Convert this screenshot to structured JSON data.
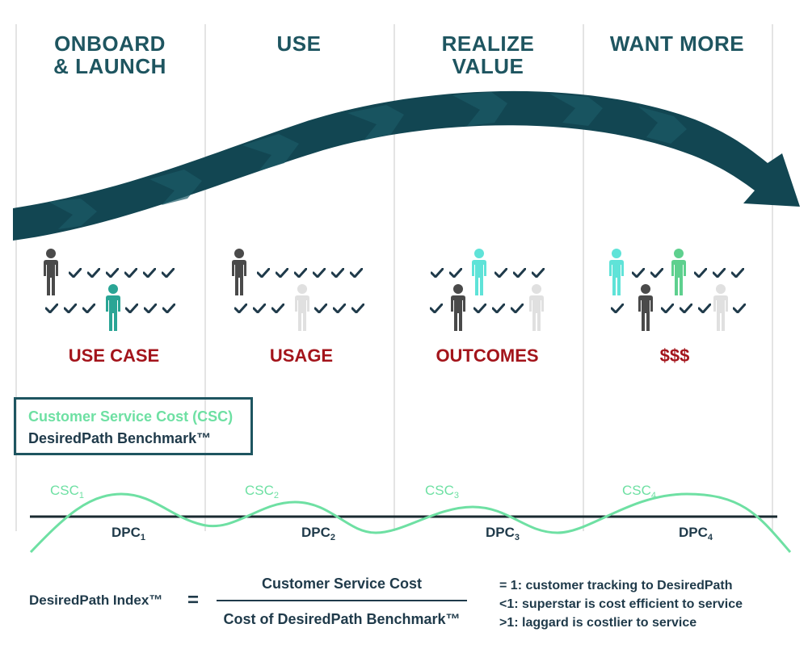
{
  "stages": [
    {
      "title_line1": "ONBOARD",
      "title_line2": "& LAUNCH",
      "label": "USE CASE"
    },
    {
      "title_line1": "USE",
      "title_line2": "",
      "label": "USAGE"
    },
    {
      "title_line1": "REALIZE",
      "title_line2": "VALUE",
      "label": "OUTCOMES"
    },
    {
      "title_line1": "WANT MORE",
      "title_line2": "",
      "label": "$$$"
    }
  ],
  "legend_box": {
    "line1": "Customer Service Cost (CSC)",
    "line2": "DesiredPath Benchmark™"
  },
  "wave_labels": {
    "csc_prefix": "CSC",
    "dpc_prefix": "DPC",
    "subscripts": [
      "1",
      "2",
      "3",
      "4"
    ]
  },
  "formula": {
    "left": "DesiredPath Index™",
    "equals": "=",
    "numerator": "Customer Service Cost",
    "denominator": "Cost of DesiredPath Benchmark™"
  },
  "index_legend": [
    "= 1: customer tracking to DesiredPath",
    "<1: superstar is cost efficient to service",
    ">1: laggard is costlier to service"
  ],
  "colors": {
    "teal_dark": "#1e5560",
    "mint": "#6ee0a3",
    "red": "#a3141b",
    "person_dark": "#4a4a4a",
    "person_light": "#e0e0e0",
    "person_cyan": "#5fe3d8",
    "person_green": "#5ed08e",
    "person_teal": "#2aa595"
  }
}
